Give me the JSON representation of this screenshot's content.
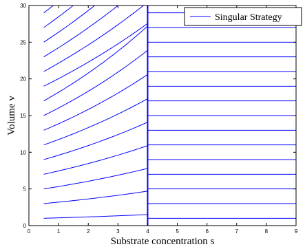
{
  "chart_data": {
    "type": "line",
    "title": "",
    "xlabel": "Substrate concentration s",
    "ylabel": "Volume v",
    "xlim": [
      0,
      9
    ],
    "ylim": [
      0,
      30
    ],
    "xticks": [
      0,
      1,
      2,
      3,
      4,
      5,
      6,
      7,
      8,
      9
    ],
    "yticks": [
      0,
      5,
      10,
      15,
      20,
      25,
      30
    ],
    "grid": false,
    "legend": {
      "position": "top-right",
      "entries": [
        "Singular Strategy"
      ]
    },
    "series": [
      {
        "name": "Singular Strategy",
        "color": "#0000ff",
        "description_type": "trajectory family",
        "left_region": {
          "s_range": [
            0.5,
            4
          ],
          "start_values_at_s0_5": [
            1,
            3,
            5,
            7,
            9,
            11,
            13,
            15,
            17,
            19,
            21,
            23,
            25,
            27,
            29
          ],
          "end_values_at_s4": [
            1.5,
            4.7,
            7.8,
            10.9,
            14.1,
            17.3,
            20.6,
            23.9,
            27.2,
            30,
            30,
            30,
            30,
            30,
            30
          ]
        },
        "switch_line": {
          "s": 4,
          "v_range": [
            0,
            30
          ]
        },
        "right_region": {
          "s_range": [
            4,
            9
          ],
          "levels": [
            1,
            3,
            5,
            7,
            9,
            11,
            13,
            15,
            17,
            19,
            21,
            23,
            25,
            27,
            29
          ]
        }
      }
    ]
  }
}
